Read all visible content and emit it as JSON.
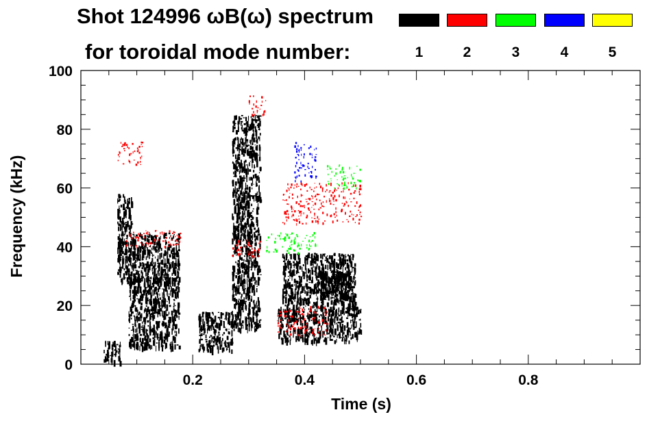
{
  "title": {
    "line1": "Shot 124996 ωB(ω) spectrum",
    "line2": "for toroidal mode number:"
  },
  "legend": [
    {
      "label": "1",
      "color": "#000000"
    },
    {
      "label": "2",
      "color": "#ff0000"
    },
    {
      "label": "3",
      "color": "#00ff00"
    },
    {
      "label": "4",
      "color": "#0000ff"
    },
    {
      "label": "5",
      "color": "#ffff00"
    }
  ],
  "chart_data": {
    "type": "heatmap",
    "title": "Shot 124996 ωB(ω) spectrum for toroidal mode number:",
    "xlabel": "Time (s)",
    "ylabel": "Frequency (kHz)",
    "xlim": [
      0.0,
      1.0
    ],
    "ylim": [
      0,
      100
    ],
    "x_ticks": [
      0.2,
      0.4,
      0.6,
      0.8
    ],
    "y_ticks": [
      0,
      20,
      40,
      60,
      80,
      100
    ],
    "grid": false,
    "legend_position": "top-right",
    "mode_colors": {
      "1": "#000000",
      "2": "#ff0000",
      "3": "#00ff00",
      "4": "#0000ff",
      "5": "#ffff00"
    },
    "regions": [
      {
        "mode": 1,
        "x": [
          0.065,
          0.175
        ],
        "y": [
          28,
          45
        ]
      },
      {
        "mode": 1,
        "x": [
          0.065,
          0.09
        ],
        "y": [
          36,
          58
        ]
      },
      {
        "mode": 1,
        "x": [
          0.04,
          0.07
        ],
        "y": [
          1,
          8
        ]
      },
      {
        "mode": 1,
        "x": [
          0.085,
          0.175
        ],
        "y": [
          6,
          30
        ]
      },
      {
        "mode": 1,
        "x": [
          0.21,
          0.27
        ],
        "y": [
          5,
          18
        ]
      },
      {
        "mode": 1,
        "x": [
          0.27,
          0.32
        ],
        "y": [
          12,
          30
        ]
      },
      {
        "mode": 1,
        "x": [
          0.27,
          0.32
        ],
        "y": [
          30,
          85
        ]
      },
      {
        "mode": 1,
        "x": [
          0.36,
          0.49
        ],
        "y": [
          20,
          38
        ]
      },
      {
        "mode": 1,
        "x": [
          0.42,
          0.49
        ],
        "y": [
          22,
          32
        ]
      },
      {
        "mode": 1,
        "x": [
          0.35,
          0.5
        ],
        "y": [
          8,
          20
        ]
      },
      {
        "mode": 2,
        "x": [
          0.065,
          0.11
        ],
        "y": [
          68,
          76
        ]
      },
      {
        "mode": 2,
        "x": [
          0.08,
          0.18
        ],
        "y": [
          40,
          46
        ]
      },
      {
        "mode": 2,
        "x": [
          0.27,
          0.32
        ],
        "y": [
          36,
          43
        ]
      },
      {
        "mode": 2,
        "x": [
          0.3,
          0.33
        ],
        "y": [
          85,
          92
        ]
      },
      {
        "mode": 2,
        "x": [
          0.36,
          0.5
        ],
        "y": [
          48,
          62
        ]
      },
      {
        "mode": 2,
        "x": [
          0.35,
          0.44
        ],
        "y": [
          10,
          20
        ]
      },
      {
        "mode": 3,
        "x": [
          0.44,
          0.5
        ],
        "y": [
          60,
          68
        ]
      },
      {
        "mode": 3,
        "x": [
          0.33,
          0.42
        ],
        "y": [
          38,
          45
        ]
      },
      {
        "mode": 4,
        "x": [
          0.38,
          0.42
        ],
        "y": [
          62,
          76
        ]
      }
    ]
  }
}
